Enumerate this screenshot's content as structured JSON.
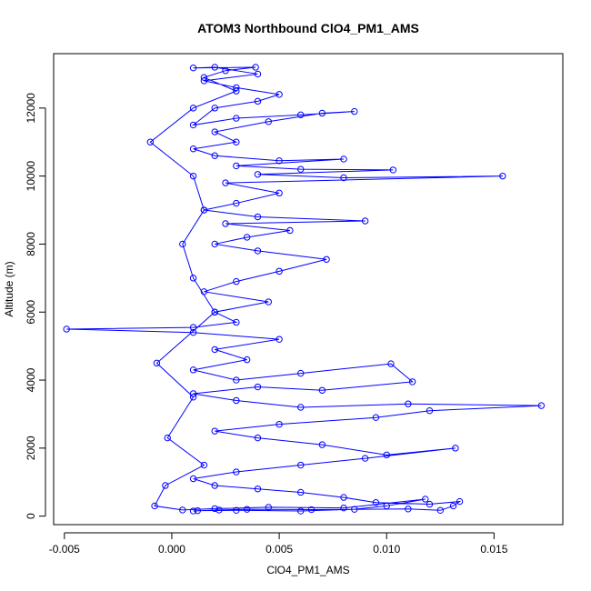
{
  "chart_data": {
    "type": "scatter",
    "title": "ATOM3 Northbound ClO4_PM1_AMS",
    "xlabel": "ClO4_PM1_AMS",
    "ylabel": "Altitude (m)",
    "xlim": [
      -0.0055,
      0.0182
    ],
    "ylim": [
      -250,
      13600
    ],
    "x_ticks": [
      -0.005,
      0.0,
      0.005,
      0.01,
      0.015
    ],
    "x_tick_labels": [
      "-0.005",
      "0.000",
      "0.005",
      "0.010",
      "0.015"
    ],
    "y_ticks": [
      0,
      2000,
      4000,
      6000,
      8000,
      10000,
      12000
    ],
    "y_tick_labels": [
      "0",
      "2000",
      "4000",
      "6000",
      "8000",
      "10000",
      "12000"
    ],
    "series_color": "#0000ff",
    "marker": "open-circle",
    "connected": true,
    "grid": false,
    "series": [
      {
        "points": [
          [
            0.001,
            150
          ],
          [
            0.0022,
            180
          ],
          [
            0.0035,
            200
          ],
          [
            0.0065,
            190
          ],
          [
            0.011,
            210
          ],
          [
            0.0125,
            170
          ],
          [
            0.0131,
            300
          ],
          [
            0.0134,
            430
          ],
          [
            0.012,
            350
          ],
          [
            0.0095,
            400
          ],
          [
            0.008,
            550
          ],
          [
            0.006,
            700
          ],
          [
            0.004,
            800
          ],
          [
            0.002,
            900
          ],
          [
            0.001,
            1100
          ],
          [
            0.003,
            1300
          ],
          [
            0.006,
            1500
          ],
          [
            0.009,
            1700
          ],
          [
            0.0132,
            2000
          ],
          [
            0.01,
            1800
          ],
          [
            0.007,
            2100
          ],
          [
            0.004,
            2300
          ],
          [
            0.002,
            2500
          ],
          [
            0.005,
            2700
          ],
          [
            0.0095,
            2900
          ],
          [
            0.012,
            3100
          ],
          [
            0.0172,
            3250
          ],
          [
            0.011,
            3300
          ],
          [
            0.006,
            3200
          ],
          [
            0.003,
            3400
          ],
          [
            0.001,
            3600
          ],
          [
            0.004,
            3800
          ],
          [
            0.007,
            3700
          ],
          [
            0.0112,
            3950
          ],
          [
            0.0102,
            4480
          ],
          [
            0.006,
            4200
          ],
          [
            0.003,
            4000
          ],
          [
            0.001,
            4300
          ],
          [
            0.0035,
            4600
          ],
          [
            0.002,
            4900
          ],
          [
            0.005,
            5200
          ],
          [
            0.001,
            5400
          ],
          [
            -0.0049,
            5500
          ],
          [
            0.001,
            5550
          ],
          [
            0.003,
            5700
          ],
          [
            0.002,
            6000
          ],
          [
            0.0045,
            6300
          ],
          [
            0.0015,
            6600
          ],
          [
            0.003,
            6900
          ],
          [
            0.005,
            7200
          ],
          [
            0.0072,
            7550
          ],
          [
            0.004,
            7800
          ],
          [
            0.002,
            8000
          ],
          [
            0.0035,
            8200
          ],
          [
            0.0055,
            8400
          ],
          [
            0.0025,
            8600
          ],
          [
            0.009,
            8680
          ],
          [
            0.004,
            8800
          ],
          [
            0.0015,
            9000
          ],
          [
            0.003,
            9200
          ],
          [
            0.005,
            9500
          ],
          [
            0.0025,
            9800
          ],
          [
            0.0154,
            10000
          ],
          [
            0.008,
            9950
          ],
          [
            0.004,
            10050
          ],
          [
            0.0103,
            10180
          ],
          [
            0.006,
            10200
          ],
          [
            0.003,
            10300
          ],
          [
            0.008,
            10500
          ],
          [
            0.005,
            10450
          ],
          [
            0.002,
            10600
          ],
          [
            0.001,
            10800
          ],
          [
            0.003,
            11000
          ],
          [
            0.002,
            11300
          ],
          [
            0.0045,
            11600
          ],
          [
            0.007,
            11850
          ],
          [
            0.0085,
            11900
          ],
          [
            0.006,
            11800
          ],
          [
            0.003,
            11700
          ],
          [
            0.001,
            11500
          ],
          [
            0.002,
            12000
          ],
          [
            0.004,
            12200
          ],
          [
            0.005,
            12400
          ],
          [
            0.003,
            12600
          ],
          [
            0.0015,
            12800
          ],
          [
            0.004,
            13000
          ],
          [
            0.002,
            13200
          ],
          [
            0.001,
            13180
          ],
          [
            0.0039,
            13200
          ],
          [
            0.0025,
            13100
          ],
          [
            0.0015,
            12900
          ],
          [
            0.003,
            12500
          ],
          [
            0.001,
            12000
          ],
          [
            -0.001,
            11000
          ],
          [
            0.001,
            10000
          ],
          [
            0.0015,
            9000
          ],
          [
            0.0005,
            8000
          ],
          [
            0.001,
            7000
          ],
          [
            0.002,
            6000
          ],
          [
            -0.0007,
            4500
          ],
          [
            0.001,
            3500
          ],
          [
            -0.0002,
            2300
          ],
          [
            0.0015,
            1500
          ],
          [
            -0.0003,
            900
          ],
          [
            -0.0008,
            300
          ],
          [
            0.0005,
            180
          ],
          [
            0.002,
            220
          ],
          [
            0.0045,
            260
          ],
          [
            0.008,
            240
          ],
          [
            0.0118,
            500
          ],
          [
            0.01,
            300
          ],
          [
            0.0085,
            200
          ],
          [
            0.006,
            150
          ],
          [
            0.003,
            170
          ],
          [
            0.0012,
            160
          ]
        ]
      }
    ]
  }
}
